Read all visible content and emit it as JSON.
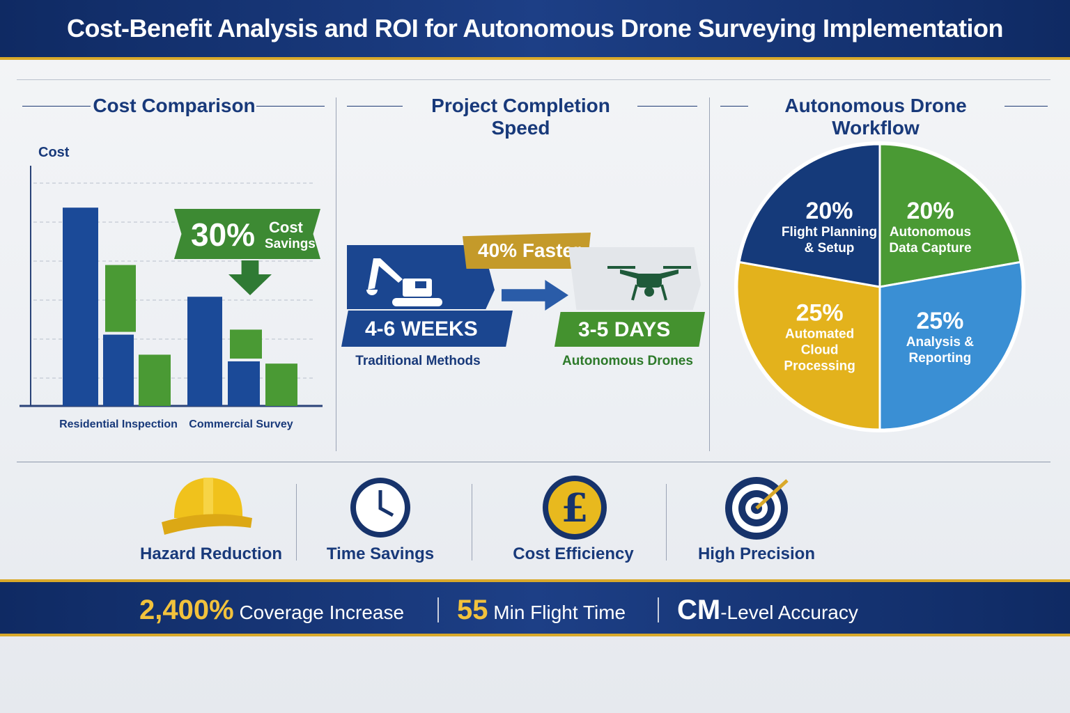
{
  "header": {
    "title": "Cost-Benefit Analysis and ROI for Autonomous Drone Surveying Implementation"
  },
  "cost_comparison": {
    "title": "Cost Comparison",
    "badge_percent": "30%",
    "badge_text_1": "Cost",
    "badge_text_2": "Savings"
  },
  "speed": {
    "title": "Project Completion Speed",
    "traditional_value": "4-6 WEEKS",
    "traditional_label": "Traditional Methods",
    "faster": "40% Faster",
    "drone_value": "3-5 DAYS",
    "drone_label": "Autonomous Drones"
  },
  "workflow": {
    "title": "Autonomous Drone Workflow"
  },
  "benefits": [
    {
      "label": "Hazard Reduction"
    },
    {
      "label": "Time Savings"
    },
    {
      "label": "Cost Efficiency"
    },
    {
      "label": "High Precision"
    }
  ],
  "footer": {
    "stat1_value": "2,400%",
    "stat1_label": "Coverage Increase",
    "stat2_value": "55",
    "stat2_label": "Min Flight Time",
    "stat3_value": "CM",
    "stat3_label": "-Level Accuracy"
  },
  "colors": {
    "blue": "#1b4a98",
    "green": "#4a9a34",
    "yellow": "#e3b21c",
    "light_blue": "#3a8fd4",
    "navy": "#153a7a",
    "gold": "#d9a92a"
  },
  "chart_data": [
    {
      "type": "bar",
      "title": "Cost Comparison",
      "ylabel": "Cost",
      "xlabel": "",
      "categories": [
        "Residential Inspection",
        "Commercial Survey"
      ],
      "ylim": [
        0,
        100
      ],
      "grid": true,
      "bars": [
        {
          "category": "Residential Inspection",
          "series": "traditional",
          "color": "blue",
          "stack": [
            89
          ]
        },
        {
          "category": "Residential Inspection",
          "series": "drone-stacked",
          "color": "blue+green",
          "stack": [
            32,
            30
          ]
        },
        {
          "category": "Residential Inspection",
          "series": "drone",
          "color": "green",
          "stack": [
            23
          ]
        },
        {
          "category": "Commercial Survey",
          "series": "traditional",
          "color": "blue",
          "stack": [
            49
          ]
        },
        {
          "category": "Commercial Survey",
          "series": "drone-stacked",
          "color": "blue+green",
          "stack": [
            20,
            13
          ]
        },
        {
          "category": "Commercial Survey",
          "series": "drone",
          "color": "green",
          "stack": [
            19
          ]
        }
      ]
    },
    {
      "type": "pie",
      "title": "Autonomous Drone Workflow",
      "slices": [
        {
          "label": "Autonomous Data Capture",
          "value": 20,
          "display": "20%",
          "color": "#4a9a34"
        },
        {
          "label": "Analysis & Reporting",
          "value": 25,
          "display": "25%",
          "color": "#3a8fd4"
        },
        {
          "label": "Automated Cloud Processing",
          "value": 25,
          "display": "25%",
          "color": "#e3b21c"
        },
        {
          "label": "Flight Planning & Setup",
          "value": 20,
          "display": "20%",
          "color": "#153a7a"
        }
      ]
    }
  ]
}
